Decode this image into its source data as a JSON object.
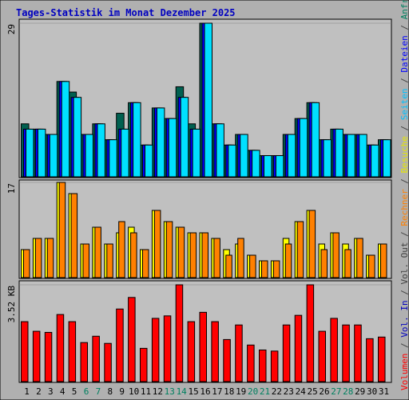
{
  "page": {
    "background": "#b0b0b0",
    "plot_background": "#c0c0c0",
    "title_color": "#0000c0"
  },
  "chart_data": {
    "title": "Tages-Statistik im Monat Dezember 2025",
    "days": [
      "1",
      "2",
      "3",
      "4",
      "5",
      "6",
      "7",
      "8",
      "9",
      "10",
      "11",
      "12",
      "13",
      "14",
      "15",
      "16",
      "17",
      "18",
      "19",
      "20",
      "21",
      "22",
      "23",
      "24",
      "25",
      "26",
      "27",
      "28",
      "29",
      "30",
      "31"
    ],
    "weekend_days": [
      "6",
      "7",
      "13",
      "14",
      "20",
      "21",
      "27",
      "28"
    ],
    "day_color": "#000000",
    "weekend_color": "#008060",
    "panels": [
      {
        "type": "bar",
        "scale_label": "29",
        "ymax": 29,
        "series": [
          {
            "name": "Anfragen",
            "color": "#006050",
            "values": [
              10,
              9,
              8,
              18,
              16,
              8,
              10,
              7,
              12,
              14,
              6,
              13,
              11,
              17,
              10,
              29,
              10,
              6,
              8,
              5,
              4,
              4,
              8,
              11,
              14,
              7,
              9,
              8,
              8,
              6,
              7
            ]
          },
          {
            "name": "Dateien",
            "color": "#0000ff",
            "values": [
              9,
              9,
              8,
              18,
              15,
              8,
              10,
              7,
              9,
              14,
              6,
              13,
              11,
              15,
              9,
              29,
              10,
              6,
              8,
              5,
              4,
              4,
              8,
              11,
              14,
              7,
              9,
              8,
              8,
              6,
              7
            ]
          },
          {
            "name": "Seiten",
            "color": "#00e0ff",
            "values": [
              9,
              9,
              8,
              18,
              15,
              8,
              10,
              7,
              9,
              14,
              6,
              13,
              11,
              15,
              9,
              29,
              10,
              6,
              8,
              5,
              4,
              4,
              8,
              11,
              14,
              7,
              9,
              8,
              8,
              6,
              7
            ]
          }
        ]
      },
      {
        "type": "bar",
        "scale_label": "17",
        "ymax": 17,
        "series": [
          {
            "name": "Besuche",
            "color": "#ffff00",
            "values": [
              5,
              7,
              7,
              17,
              15,
              6,
              9,
              6,
              8,
              9,
              5,
              12,
              10,
              9,
              8,
              8,
              7,
              5,
              6,
              4,
              3,
              3,
              7,
              10,
              12,
              6,
              8,
              6,
              7,
              4,
              6
            ]
          },
          {
            "name": "Rechner",
            "color": "#ff8000",
            "values": [
              5,
              7,
              7,
              17,
              15,
              6,
              9,
              6,
              10,
              8,
              5,
              12,
              10,
              9,
              8,
              8,
              7,
              4,
              7,
              4,
              3,
              3,
              6,
              10,
              12,
              5,
              8,
              5,
              7,
              4,
              6
            ]
          }
        ]
      },
      {
        "type": "bar",
        "scale_label": "3.52 KB",
        "ymax": 3.52,
        "series": [
          {
            "name": "Volumen",
            "color": "#ff0000",
            "values": [
              2.18,
              1.83,
              1.79,
              2.44,
              2.18,
              1.42,
              1.65,
              1.39,
              2.64,
              3.06,
              1.21,
              2.3,
              2.39,
              3.52,
              2.18,
              2.52,
              2.18,
              1.53,
              2.06,
              1.33,
              1.15,
              1.11,
              2.06,
              2.41,
              3.52,
              1.83,
              2.3,
              2.06,
              2.06,
              1.56,
              1.62
            ]
          }
        ]
      }
    ],
    "legend_left": [
      {
        "text": "Volumen",
        "color": "#ff0000"
      },
      {
        "text": " / ",
        "color": "#404040"
      },
      {
        "text": "Vol. In",
        "color": "#0000c0"
      },
      {
        "text": " / ",
        "color": "#404040"
      },
      {
        "text": "Vol. Out",
        "color": "#404040"
      },
      {
        "text": " / ",
        "color": "#404040"
      },
      {
        "text": "Rechner",
        "color": "#ff8000"
      },
      {
        "text": " / ",
        "color": "#404040"
      },
      {
        "text": "Besuche",
        "color": "#e8e800"
      },
      {
        "text": " / ",
        "color": "#404040"
      },
      {
        "text": "Seiten",
        "color": "#00c0ff"
      },
      {
        "text": " / ",
        "color": "#404040"
      },
      {
        "text": "Dateien",
        "color": "#0000ff"
      },
      {
        "text": " / ",
        "color": "#404040"
      },
      {
        "text": "Anfragen",
        "color": "#008060"
      }
    ]
  }
}
